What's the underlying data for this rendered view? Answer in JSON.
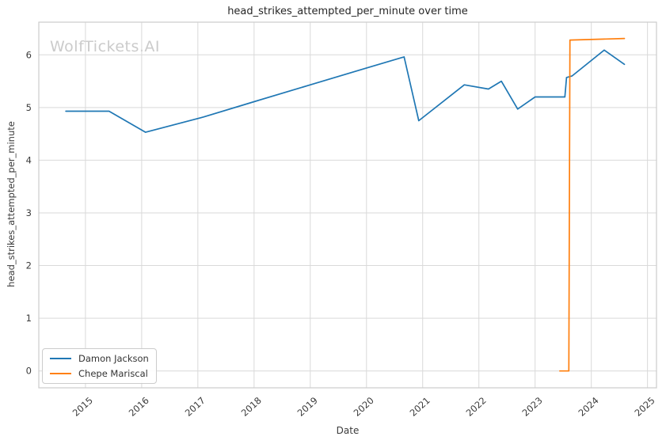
{
  "chart_data": {
    "type": "line",
    "title": "head_strikes_attempted_per_minute over time",
    "xlabel": "Date",
    "ylabel": "head_strikes_attempted_per_minute",
    "watermark": "WolfTickets.AI",
    "grid": true,
    "legend_position": "lower left",
    "x_ticks": [
      2015,
      2016,
      2017,
      2018,
      2019,
      2020,
      2021,
      2022,
      2023,
      2024,
      2025
    ],
    "y_ticks": [
      0,
      1,
      2,
      3,
      4,
      5,
      6
    ],
    "xlim": [
      2014.17,
      2025.16
    ],
    "ylim": [
      -0.32,
      6.62
    ],
    "colors": {
      "grid": "#d9d9d9",
      "spine": "#cccccc",
      "title_text": "#262626",
      "tick_text": "#3b3b3b",
      "watermark_text": "#cbcbcb",
      "background": "#ffffff"
    },
    "series": [
      {
        "name": "Damon Jackson",
        "color": "#1f77b4",
        "x": [
          2014.65,
          2015.42,
          2016.07,
          2017.1,
          2018.0,
          2019.0,
          2020.0,
          2020.67,
          2020.93,
          2021.74,
          2022.17,
          2022.4,
          2022.69,
          2023.0,
          2023.53,
          2023.56,
          2023.66,
          2024.23,
          2024.59
        ],
        "y": [
          4.93,
          4.93,
          4.53,
          4.82,
          5.11,
          5.43,
          5.75,
          5.96,
          4.75,
          5.43,
          5.35,
          5.5,
          4.97,
          5.2,
          5.2,
          5.57,
          5.6,
          6.09,
          5.82
        ]
      },
      {
        "name": "Chepe Mariscal",
        "color": "#ff7f0e",
        "x": [
          2023.44,
          2023.6,
          2023.62,
          2024.26,
          2024.59
        ],
        "y": [
          0.0,
          0.0,
          6.28,
          6.3,
          6.31
        ]
      }
    ]
  }
}
